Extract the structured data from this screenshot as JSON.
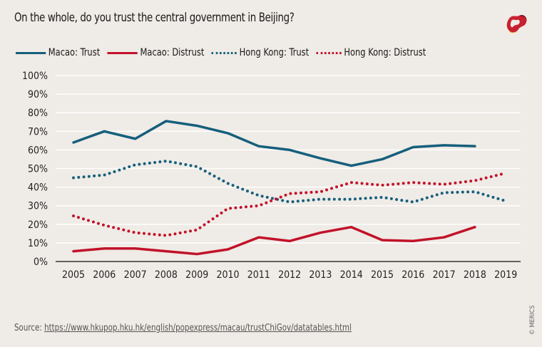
{
  "header": {
    "title": "On the whole, do you trust the central government in Beijing?",
    "logo_icon": "merics-logo-icon"
  },
  "footer": {
    "source_label": "Source:",
    "source_link": "https://www.hkupop.hku.hk/english/popexpress/macau/trustChiGov/datatables.html",
    "credit": "© MERICS"
  },
  "colors": {
    "background": "#efebe6",
    "macao": "#155f7c",
    "distrust": "#c2122a",
    "grid": "#ffffff",
    "axis": "#333333"
  },
  "chart_data": {
    "type": "line",
    "title": "On the whole, do you trust the central government in Beijing?",
    "xlabel": "",
    "ylabel": "",
    "ylim": [
      0,
      100
    ],
    "y_ticks": [
      "0%",
      "10%",
      "20%",
      "30%",
      "40%",
      "50%",
      "60%",
      "70%",
      "80%",
      "90%",
      "100%"
    ],
    "y_tick_values": [
      0,
      10,
      20,
      30,
      40,
      50,
      60,
      70,
      80,
      90,
      100
    ],
    "grid": true,
    "legend_position": "top-left",
    "categories": [
      "2005",
      "2006",
      "2007",
      "2008",
      "2009",
      "2010",
      "2011",
      "2012",
      "2013",
      "2014",
      "2015",
      "2016",
      "2017",
      "2018",
      "2019"
    ],
    "series": [
      {
        "name": "Macao: Trust",
        "style": "solid",
        "color": "#155f7c",
        "values": [
          64,
          70,
          66,
          75.5,
          73,
          69,
          62,
          60,
          55.5,
          51.5,
          55,
          61.5,
          62.5,
          62,
          null
        ]
      },
      {
        "name": "Macao: Distrust",
        "style": "solid",
        "color": "#c2122a",
        "values": [
          5.5,
          7,
          7,
          5.5,
          4,
          6.5,
          13,
          11,
          15.5,
          18.5,
          11.5,
          11,
          13,
          18.5,
          null
        ]
      },
      {
        "name": "Hong Kong: Trust",
        "style": "dotted",
        "color": "#155f7c",
        "values": [
          45,
          46.5,
          52,
          54,
          51,
          42,
          35.5,
          32,
          33.5,
          33.5,
          34.5,
          32,
          37,
          37.5,
          32.5
        ]
      },
      {
        "name": "Hong Kong: Distrust",
        "style": "dotted",
        "color": "#c2122a",
        "values": [
          24.5,
          19.5,
          15.5,
          14,
          17,
          28.5,
          30,
          36.5,
          37.5,
          42.5,
          41,
          42.5,
          41.5,
          43.5,
          47.5
        ]
      }
    ]
  }
}
